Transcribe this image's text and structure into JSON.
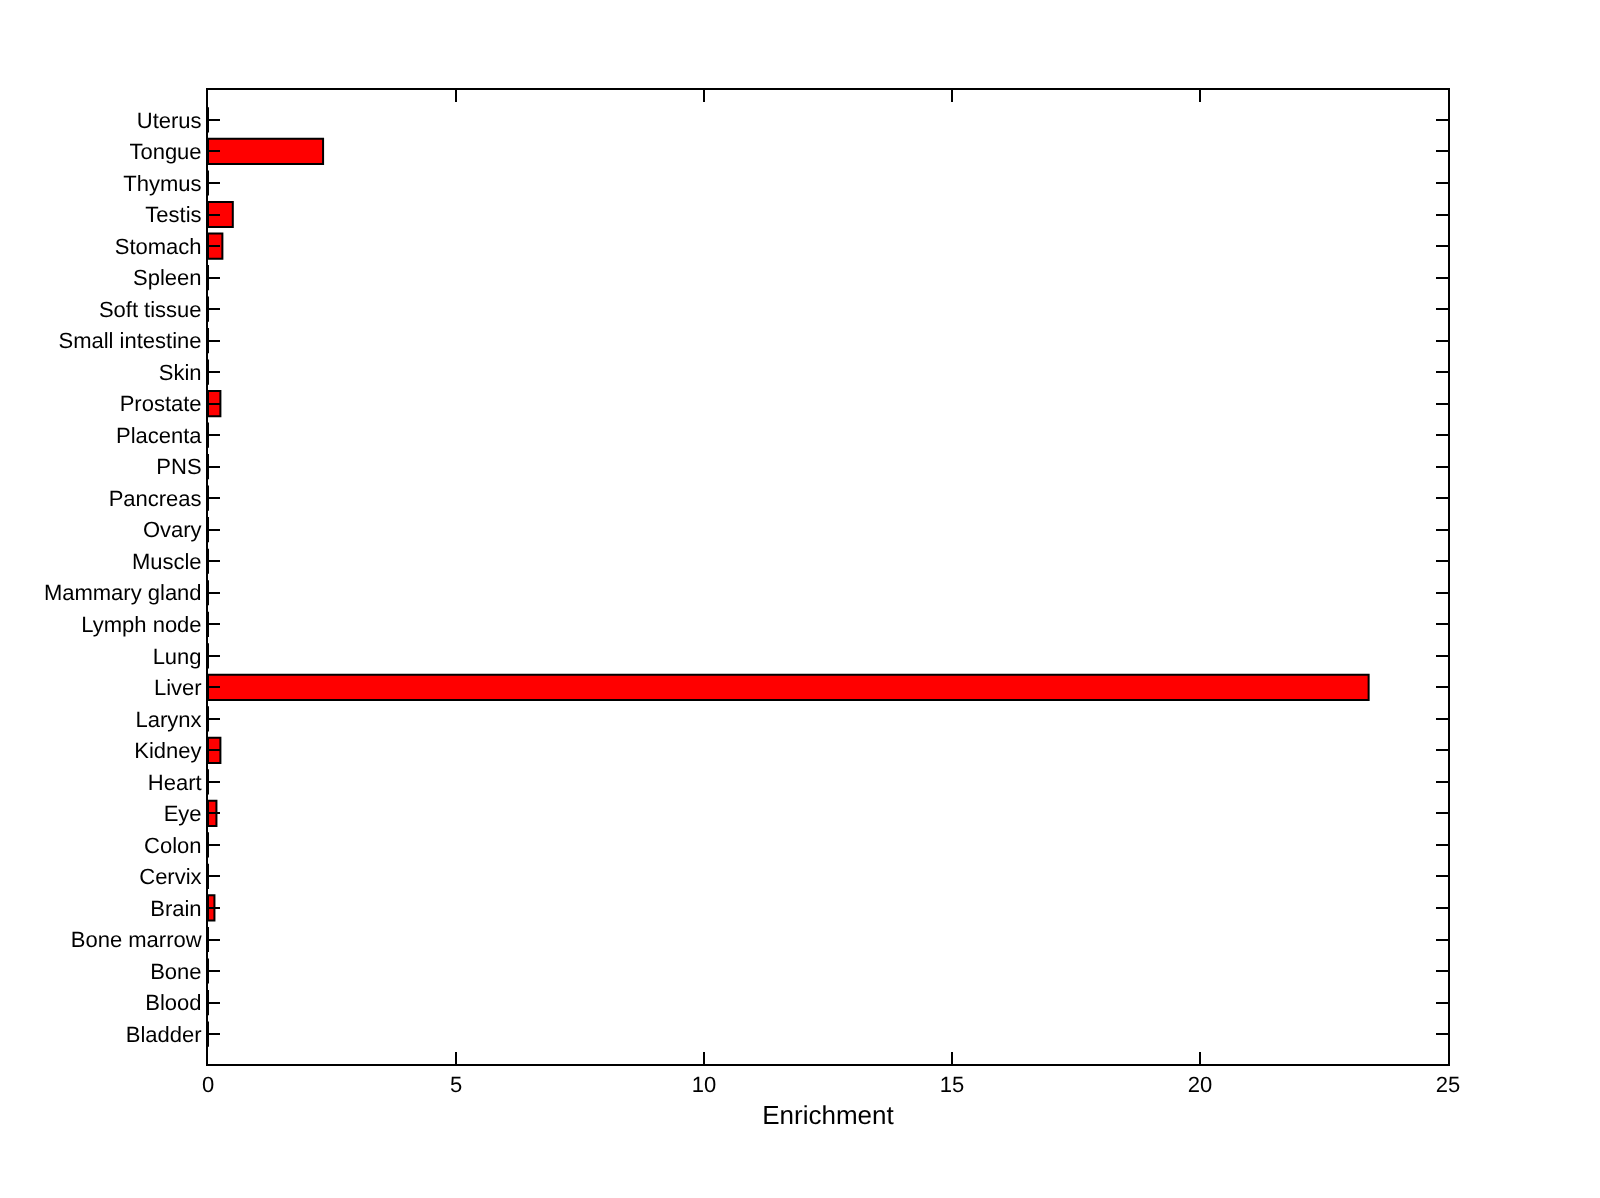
{
  "chart_data": {
    "type": "bar",
    "orientation": "horizontal",
    "xlabel": "Enrichment",
    "categories": [
      "Uterus",
      "Tongue",
      "Thymus",
      "Testis",
      "Stomach",
      "Spleen",
      "Soft tissue",
      "Small intestine",
      "Skin",
      "Prostate",
      "Placenta",
      "PNS",
      "Pancreas",
      "Ovary",
      "Muscle",
      "Mammary gland",
      "Lymph node",
      "Lung",
      "Liver",
      "Larynx",
      "Kidney",
      "Heart",
      "Eye",
      "Colon",
      "Cervix",
      "Brain",
      "Bone marrow",
      "Bone",
      "Blood",
      "Bladder"
    ],
    "values": [
      0,
      2.32,
      0,
      0.5,
      0.29,
      0,
      0,
      0,
      0,
      0.25,
      0,
      0,
      0,
      0,
      0,
      0,
      0,
      0,
      23.4,
      0,
      0.25,
      0,
      0.17,
      0,
      0,
      0.13,
      0,
      0,
      0,
      0
    ],
    "color": "#ff0000",
    "xlim": [
      0,
      25
    ],
    "xticks": [
      0,
      5,
      10,
      15,
      20,
      25
    ]
  }
}
